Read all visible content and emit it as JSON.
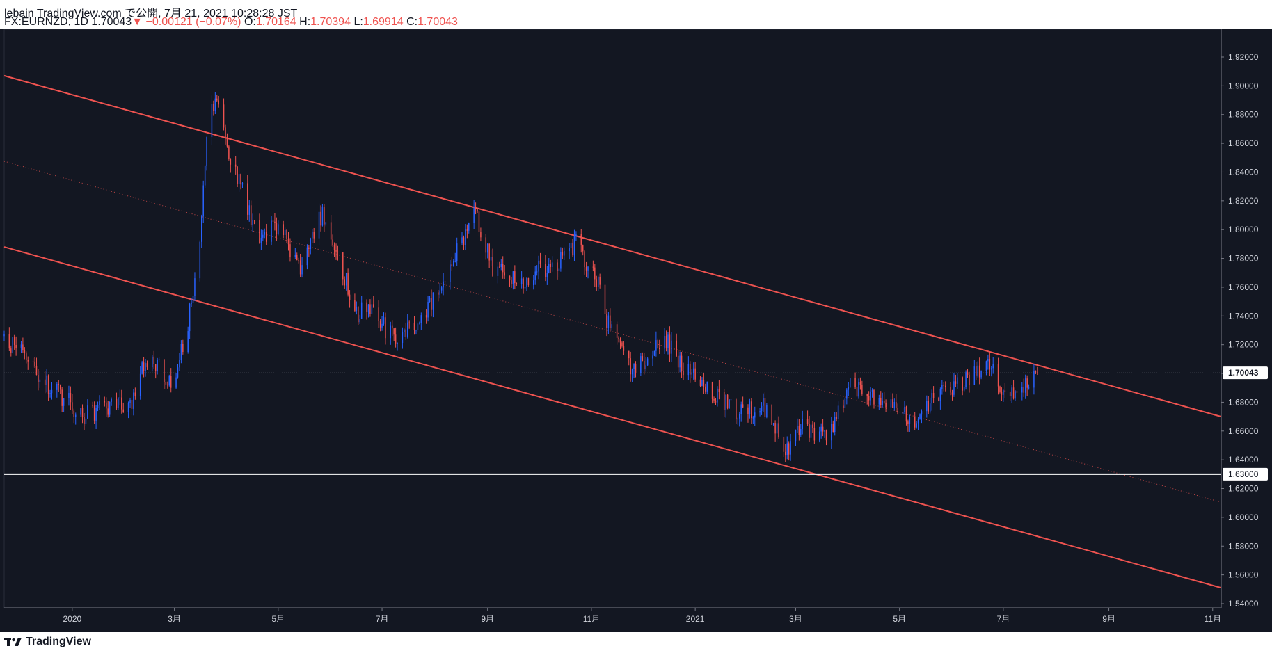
{
  "header": {
    "published_line": "lebain TradingView.com で公開, 7月 21, 2021 10:28:28 JST",
    "symbol": "FX:EURNZD, 1D",
    "last": "1.70043",
    "down_arrow": "▼",
    "change": "−0.00121 (−0.07%)",
    "o_label": "O:",
    "o_value": "1.70164",
    "h_label": "H:",
    "h_value": "1.70394",
    "l_label": "L:",
    "l_value": "1.69914",
    "c_label": "C:",
    "c_value": "1.70043"
  },
  "footer": {
    "brand": "TradingView",
    "logo_icon": "tradingview-logo-icon"
  },
  "colors": {
    "background": "#131722",
    "up": "#2962ff",
    "down": "#ef5350",
    "trendline": "#ef5350",
    "level_line": "#ffffff",
    "axis_text": "#d1d4dc",
    "last_price_bg": "#ffffff",
    "header_down": "#ef5350"
  },
  "chart_data": {
    "type": "candlestick",
    "symbol": "FX:EURNZD",
    "interval": "1D",
    "ylim": [
      1.54,
      1.92
    ],
    "y_ticks": [
      "1.92000",
      "1.90000",
      "1.88000",
      "1.86000",
      "1.84000",
      "1.82000",
      "1.80000",
      "1.78000",
      "1.76000",
      "1.74000",
      "1.72000",
      "1.70000",
      "1.68000",
      "1.66000",
      "1.64000",
      "1.62000",
      "1.60000",
      "1.58000",
      "1.56000",
      "1.54000"
    ],
    "x_ticks": [
      "2020",
      "3月",
      "5月",
      "7月",
      "9月",
      "11月",
      "2021",
      "3月",
      "5月",
      "7月",
      "9月",
      "11月"
    ],
    "x_tick_dates": [
      "2020-01-01",
      "2020-03-01",
      "2020-05-01",
      "2020-07-01",
      "2020-09-01",
      "2020-11-01",
      "2021-01-01",
      "2021-03-01",
      "2021-05-01",
      "2021-07-01",
      "2021-09-01",
      "2021-11-01"
    ],
    "x_range": [
      "2019-11-22",
      "2021-11-06"
    ],
    "last_price": 1.70043,
    "last_price_label": "1.70043",
    "horizontal_level": 1.63,
    "horizontal_level_label": "1.63000",
    "trend_channel": {
      "upper": [
        [
          "2019-11-22",
          1.907
        ],
        [
          "2021-11-06",
          1.67
        ]
      ],
      "lower": [
        [
          "2019-11-22",
          1.788
        ],
        [
          "2021-11-06",
          1.551
        ]
      ],
      "middle": [
        [
          "2019-11-22",
          1.8475
        ],
        [
          "2021-11-06",
          1.6105
        ]
      ]
    },
    "price_path": [
      [
        "2019-11-22",
        1.726
      ],
      [
        "2019-12-05",
        1.71
      ],
      [
        "2019-12-20",
        1.69
      ],
      [
        "2020-01-08",
        1.67
      ],
      [
        "2020-01-20",
        1.676
      ],
      [
        "2020-02-05",
        1.678
      ],
      [
        "2020-02-13",
        1.712
      ],
      [
        "2020-02-21",
        1.706
      ],
      [
        "2020-02-28",
        1.69
      ],
      [
        "2020-03-09",
        1.735
      ],
      [
        "2020-03-16",
        1.795
      ],
      [
        "2020-03-21",
        1.88
      ],
      [
        "2020-03-25",
        1.89
      ],
      [
        "2020-04-03",
        1.85
      ],
      [
        "2020-04-20",
        1.792
      ],
      [
        "2020-05-01",
        1.805
      ],
      [
        "2020-05-14",
        1.77
      ],
      [
        "2020-05-27",
        1.812
      ],
      [
        "2020-06-05",
        1.785
      ],
      [
        "2020-06-15",
        1.742
      ],
      [
        "2020-06-25",
        1.744
      ],
      [
        "2020-07-08",
        1.723
      ],
      [
        "2020-07-20",
        1.735
      ],
      [
        "2020-07-31",
        1.752
      ],
      [
        "2020-08-12",
        1.782
      ],
      [
        "2020-08-25",
        1.812
      ],
      [
        "2020-09-03",
        1.775
      ],
      [
        "2020-09-18",
        1.763
      ],
      [
        "2020-10-01",
        1.773
      ],
      [
        "2020-10-12",
        1.774
      ],
      [
        "2020-10-23",
        1.792
      ],
      [
        "2020-11-04",
        1.765
      ],
      [
        "2020-11-12",
        1.73
      ],
      [
        "2020-11-25",
        1.7
      ],
      [
        "2020-12-08",
        1.718
      ],
      [
        "2020-12-16",
        1.722
      ],
      [
        "2020-12-28",
        1.7
      ],
      [
        "2021-01-12",
        1.685
      ],
      [
        "2021-01-27",
        1.672
      ],
      [
        "2021-02-10",
        1.676
      ],
      [
        "2021-02-25",
        1.645
      ],
      [
        "2021-03-04",
        1.663
      ],
      [
        "2021-03-20",
        1.656
      ],
      [
        "2021-04-01",
        1.692
      ],
      [
        "2021-04-15",
        1.682
      ],
      [
        "2021-04-28",
        1.676
      ],
      [
        "2021-05-10",
        1.669
      ],
      [
        "2021-05-28",
        1.688
      ],
      [
        "2021-06-10",
        1.697
      ],
      [
        "2021-06-22",
        1.708
      ],
      [
        "2021-07-01",
        1.69
      ],
      [
        "2021-07-12",
        1.687
      ],
      [
        "2021-07-21",
        1.70043
      ]
    ]
  }
}
